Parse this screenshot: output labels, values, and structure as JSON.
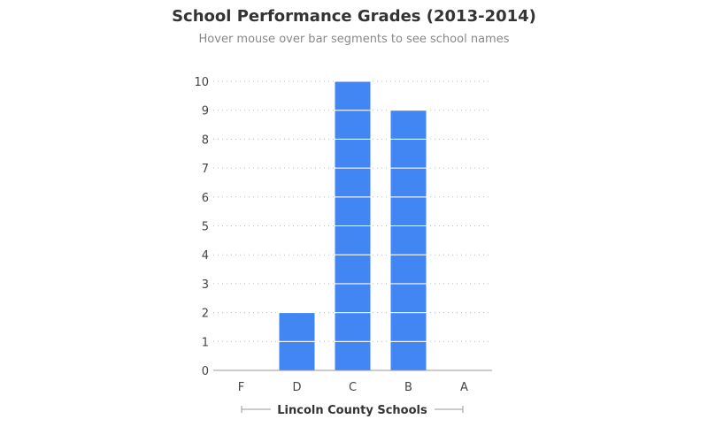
{
  "header": {
    "title": "School Performance Grades (2013-2014)",
    "subtitle": "Hover mouse over bar segments to see school names"
  },
  "chart_data": {
    "type": "bar",
    "stacked_segments": true,
    "title": "School Performance Grades (2013-2014)",
    "subtitle": "Hover mouse over bar segments to see school names",
    "categories": [
      "F",
      "D",
      "C",
      "B",
      "A"
    ],
    "values": [
      0,
      2,
      10,
      9,
      0
    ],
    "xlabel": "Lincoln County Schools",
    "ylabel": "",
    "ylim": [
      0,
      10
    ],
    "yticks": [
      0,
      1,
      2,
      3,
      4,
      5,
      6,
      7,
      8,
      9,
      10
    ],
    "grid": true,
    "bar_color": "#4286f4"
  }
}
